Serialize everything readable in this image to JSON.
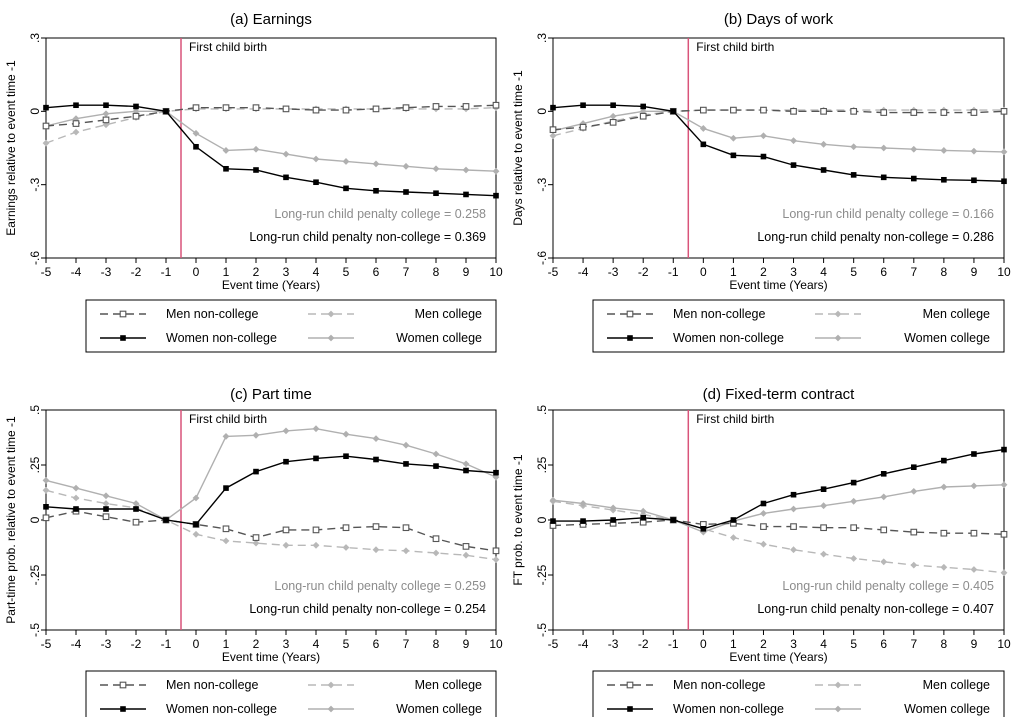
{
  "chart_data": [
    {
      "type": "line",
      "title": "(a) Earnings",
      "xlabel": "Event time (Years)",
      "ylabel": "Earnings relative to event time -1",
      "x": [
        -5,
        -4,
        -3,
        -2,
        -1,
        0,
        1,
        2,
        3,
        4,
        5,
        6,
        7,
        8,
        9,
        10
      ],
      "xlim": [
        -5,
        10
      ],
      "ylim": [
        -0.6,
        0.3
      ],
      "yticks": [
        -0.6,
        -0.3,
        0,
        0.3
      ],
      "ytick_labels": [
        "-.6",
        "-.3",
        "0",
        ".3"
      ],
      "event_line_x": -0.5,
      "event_label": "First child birth",
      "annotations": [
        "Long-run child penalty college = 0.258",
        "Long-run child penalty non-college = 0.369"
      ],
      "series": [
        {
          "name": "Men non-college",
          "values": [
            -0.06,
            -0.05,
            -0.035,
            -0.02,
            0,
            0.015,
            0.015,
            0.015,
            0.01,
            0.005,
            0.005,
            0.01,
            0.015,
            0.02,
            0.02,
            0.025
          ]
        },
        {
          "name": "Men college",
          "values": [
            -0.13,
            -0.085,
            -0.055,
            -0.025,
            0,
            0.01,
            0.01,
            0.01,
            0.01,
            0.01,
            0.01,
            0.01,
            0.01,
            0.01,
            0.01,
            0.015
          ]
        },
        {
          "name": "Women non-college",
          "values": [
            0.015,
            0.025,
            0.025,
            0.02,
            0,
            -0.145,
            -0.235,
            -0.24,
            -0.27,
            -0.29,
            -0.315,
            -0.325,
            -0.33,
            -0.335,
            -0.34,
            -0.345
          ]
        },
        {
          "name": "Women college",
          "values": [
            -0.06,
            -0.03,
            -0.01,
            0,
            0,
            -0.09,
            -0.16,
            -0.155,
            -0.175,
            -0.195,
            -0.205,
            -0.215,
            -0.225,
            -0.235,
            -0.24,
            -0.245
          ]
        }
      ]
    },
    {
      "type": "line",
      "title": "(b) Days of work",
      "xlabel": "Event time (Years)",
      "ylabel": "Days relative to event time -1",
      "x": [
        -5,
        -4,
        -3,
        -2,
        -1,
        0,
        1,
        2,
        3,
        4,
        5,
        6,
        7,
        8,
        9,
        10
      ],
      "xlim": [
        -5,
        10
      ],
      "ylim": [
        -0.6,
        0.3
      ],
      "yticks": [
        -0.6,
        -0.3,
        0,
        0.3
      ],
      "ytick_labels": [
        "-.6",
        "-.3",
        "0",
        ".3"
      ],
      "event_line_x": -0.5,
      "event_label": "First child birth",
      "annotations": [
        "Long-run child penalty college = 0.166",
        "Long-run child penalty non-college = 0.286"
      ],
      "series": [
        {
          "name": "Men non-college",
          "values": [
            -0.075,
            -0.065,
            -0.045,
            -0.02,
            0,
            0.005,
            0.005,
            0.005,
            0,
            0,
            0,
            -0.005,
            -0.005,
            -0.005,
            -0.005,
            0
          ]
        },
        {
          "name": "Men college",
          "values": [
            -0.1,
            -0.07,
            -0.04,
            -0.015,
            0,
            0.005,
            0.005,
            0.005,
            0.005,
            0.005,
            0.005,
            0.005,
            0.005,
            0.005,
            0.005,
            0.005
          ]
        },
        {
          "name": "Women non-college",
          "values": [
            0.015,
            0.025,
            0.025,
            0.02,
            0,
            -0.135,
            -0.18,
            -0.185,
            -0.22,
            -0.24,
            -0.26,
            -0.27,
            -0.275,
            -0.28,
            -0.282,
            -0.286
          ]
        },
        {
          "name": "Women college",
          "values": [
            -0.08,
            -0.05,
            -0.02,
            0,
            0,
            -0.07,
            -0.11,
            -0.1,
            -0.12,
            -0.135,
            -0.145,
            -0.15,
            -0.155,
            -0.16,
            -0.163,
            -0.166
          ]
        }
      ]
    },
    {
      "type": "line",
      "title": "(c) Part time",
      "xlabel": "Event time (Years)",
      "ylabel": "Part-time prob. relative to event time -1",
      "x": [
        -5,
        -4,
        -3,
        -2,
        -1,
        0,
        1,
        2,
        3,
        4,
        5,
        6,
        7,
        8,
        9,
        10
      ],
      "xlim": [
        -5,
        10
      ],
      "ylim": [
        -0.5,
        0.5
      ],
      "yticks": [
        -0.5,
        -0.25,
        0,
        0.25,
        0.5
      ],
      "ytick_labels": [
        "-.5",
        "-.25",
        "0",
        ".25",
        ".5"
      ],
      "event_line_x": -0.5,
      "event_label": "First child birth",
      "annotations": [
        "Long-run child penalty college = 0.259",
        "Long-run child penalty non-college = 0.254"
      ],
      "series": [
        {
          "name": "Men non-college",
          "values": [
            0.01,
            0.04,
            0.015,
            -0.01,
            0,
            -0.02,
            -0.04,
            -0.08,
            -0.045,
            -0.045,
            -0.035,
            -0.03,
            -0.035,
            -0.085,
            -0.12,
            -0.14
          ]
        },
        {
          "name": "Men college",
          "values": [
            0.135,
            0.1,
            0.075,
            0.055,
            0,
            -0.065,
            -0.095,
            -0.105,
            -0.115,
            -0.115,
            -0.125,
            -0.135,
            -0.14,
            -0.15,
            -0.16,
            -0.18
          ]
        },
        {
          "name": "Women non-college",
          "values": [
            0.06,
            0.05,
            0.05,
            0.05,
            0,
            -0.02,
            0.145,
            0.22,
            0.265,
            0.28,
            0.29,
            0.275,
            0.255,
            0.245,
            0.225,
            0.215
          ]
        },
        {
          "name": "Women college",
          "values": [
            0.18,
            0.145,
            0.11,
            0.075,
            0,
            0.1,
            0.38,
            0.385,
            0.405,
            0.415,
            0.39,
            0.37,
            0.34,
            0.3,
            0.255,
            0.195
          ]
        }
      ]
    },
    {
      "type": "line",
      "title": "(d) Fixed-term contract",
      "xlabel": "Event time (Years)",
      "ylabel": "FT prob. to event time -1",
      "x": [
        -5,
        -4,
        -3,
        -2,
        -1,
        0,
        1,
        2,
        3,
        4,
        5,
        6,
        7,
        8,
        9,
        10
      ],
      "xlim": [
        -5,
        10
      ],
      "ylim": [
        -0.5,
        0.5
      ],
      "yticks": [
        -0.5,
        -0.25,
        0,
        0.25,
        0.5
      ],
      "ytick_labels": [
        "-.5",
        "-.25",
        "0",
        ".25",
        ".5"
      ],
      "event_line_x": -0.5,
      "event_label": "First child birth",
      "annotations": [
        "Long-run child penalty college = 0.405",
        "Long-run child penalty non-college = 0.407"
      ],
      "series": [
        {
          "name": "Men non-college",
          "values": [
            -0.025,
            -0.02,
            -0.015,
            -0.01,
            0,
            -0.02,
            -0.015,
            -0.03,
            -0.03,
            -0.035,
            -0.035,
            -0.045,
            -0.055,
            -0.06,
            -0.06,
            -0.065
          ]
        },
        {
          "name": "Men college",
          "values": [
            0.085,
            0.065,
            0.045,
            0.025,
            0,
            -0.04,
            -0.08,
            -0.11,
            -0.135,
            -0.155,
            -0.175,
            -0.19,
            -0.205,
            -0.215,
            -0.225,
            -0.24
          ]
        },
        {
          "name": "Women non-college",
          "values": [
            -0.005,
            -0.005,
            0,
            0.01,
            0,
            -0.04,
            0,
            0.075,
            0.115,
            0.14,
            0.17,
            0.21,
            0.24,
            0.27,
            0.3,
            0.32
          ]
        },
        {
          "name": "Women college",
          "values": [
            0.09,
            0.075,
            0.055,
            0.04,
            0,
            -0.055,
            -0.005,
            0.03,
            0.05,
            0.065,
            0.085,
            0.105,
            0.13,
            0.15,
            0.155,
            0.16
          ]
        }
      ]
    }
  ],
  "series_style": {
    "Men non-college": {
      "color": "#555555",
      "dash": "8,5",
      "marker": "open-square"
    },
    "Men college": {
      "color": "#b8b8b8",
      "dash": "8,5",
      "marker": "diamond"
    },
    "Women non-college": {
      "color": "#000000",
      "dash": "",
      "marker": "filled-square"
    },
    "Women college": {
      "color": "#b0b0b0",
      "dash": "",
      "marker": "diamond"
    }
  },
  "colors": {
    "event_line": "#d9547a",
    "annotation_college": "#8c8c8c",
    "annotation_noncollege": "#000000"
  }
}
